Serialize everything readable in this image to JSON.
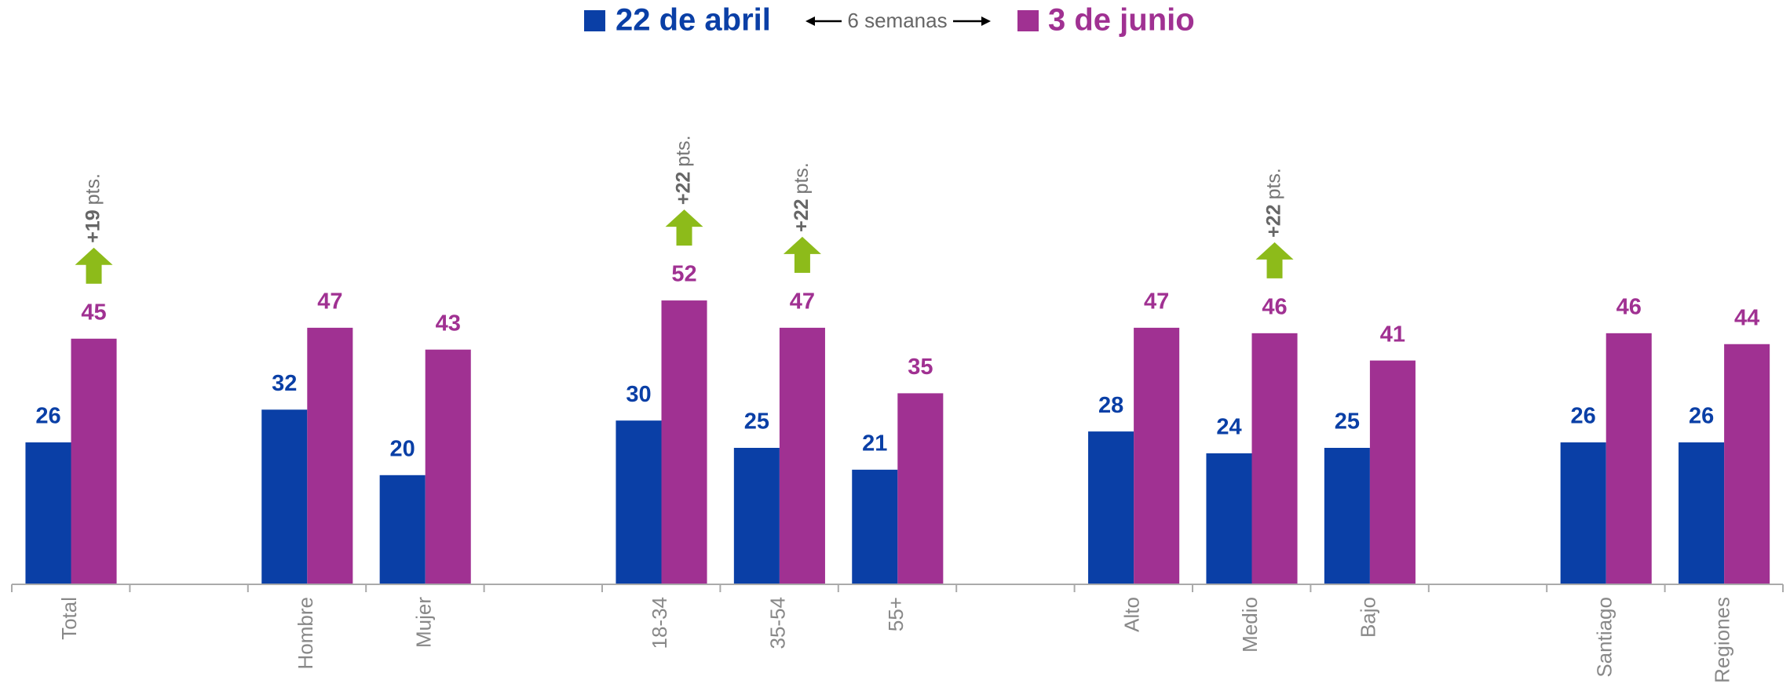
{
  "chart_data": {
    "type": "bar",
    "legend_note": "6 semanas",
    "categories": [
      "Total",
      null,
      "Hombre",
      "Mujer",
      null,
      "18-34",
      "35-54",
      "55+",
      null,
      "Alto",
      "Medio",
      "Bajo",
      null,
      "Santiago",
      "Regiones"
    ],
    "series": [
      {
        "name": "22 de abril",
        "color": "#0a3fa6",
        "values": [
          26,
          null,
          32,
          20,
          null,
          30,
          25,
          21,
          null,
          28,
          24,
          25,
          null,
          26,
          26
        ]
      },
      {
        "name": "3 de junio",
        "color": "#a03192",
        "values": [
          45,
          null,
          47,
          43,
          null,
          52,
          47,
          35,
          null,
          47,
          46,
          41,
          null,
          46,
          44
        ]
      }
    ],
    "ylim": [
      0,
      100
    ],
    "annotations": [
      {
        "category": "Total",
        "change": "+19",
        "unit": "pts."
      },
      {
        "category": "18-34",
        "change": "+22",
        "unit": "pts."
      },
      {
        "category": "35-54",
        "change": "+22",
        "unit": "pts."
      },
      {
        "category": "Medio",
        "change": "+22",
        "unit": "pts."
      }
    ]
  }
}
